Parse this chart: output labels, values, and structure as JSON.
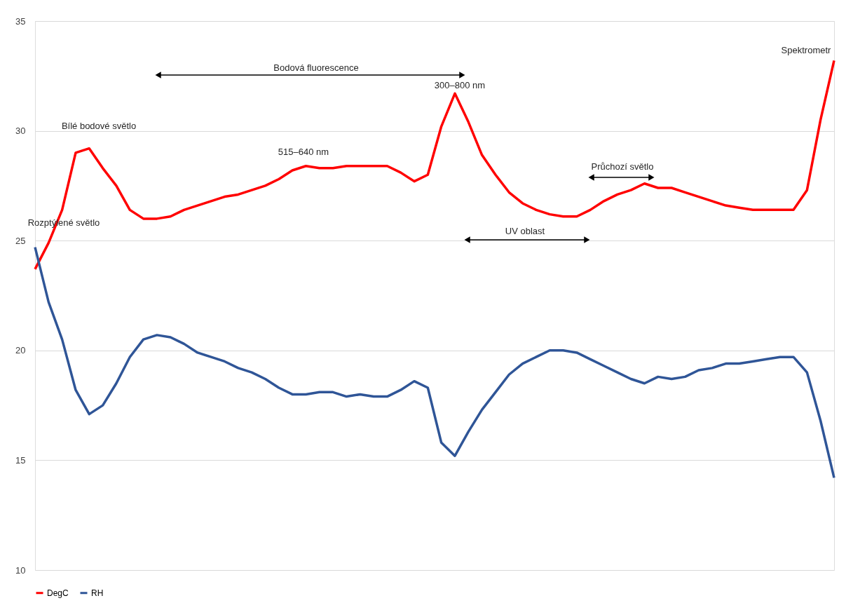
{
  "chart_data": {
    "type": "line",
    "categories": [
      null,
      null,
      null,
      null,
      null,
      null,
      null,
      null,
      null,
      null,
      null,
      null,
      null,
      null,
      null,
      null,
      null,
      null,
      null,
      null,
      null,
      null,
      null,
      null,
      null,
      null,
      null,
      null,
      null,
      null,
      null,
      null,
      null,
      null,
      null,
      null,
      null,
      null,
      null,
      null,
      null,
      null,
      null,
      null,
      null,
      null,
      null,
      null,
      null,
      null,
      null,
      null,
      null,
      null,
      null,
      null,
      null,
      null,
      null,
      null
    ],
    "series": [
      {
        "name": "DegC",
        "color": "#ff0000",
        "values": [
          23.7,
          24.9,
          26.4,
          29.0,
          29.2,
          28.3,
          27.5,
          26.4,
          26.0,
          26.0,
          26.1,
          26.4,
          26.6,
          26.8,
          27.0,
          27.1,
          27.3,
          27.5,
          27.8,
          28.2,
          28.4,
          28.3,
          28.3,
          28.4,
          28.4,
          28.4,
          28.4,
          28.1,
          27.7,
          28.0,
          30.2,
          31.7,
          30.4,
          28.9,
          28.0,
          27.2,
          26.7,
          26.4,
          26.2,
          26.1,
          26.1,
          26.4,
          26.8,
          27.1,
          27.3,
          27.6,
          27.4,
          27.4,
          27.2,
          27.0,
          26.8,
          26.6,
          26.5,
          26.4,
          26.4,
          26.4,
          26.4,
          27.3,
          30.5,
          33.2
        ]
      },
      {
        "name": "RH",
        "color": "#2f5597",
        "values": [
          24.7,
          22.2,
          20.5,
          18.2,
          17.1,
          17.5,
          18.5,
          19.7,
          20.5,
          20.7,
          20.6,
          20.3,
          19.9,
          19.7,
          19.5,
          19.2,
          19.0,
          18.7,
          18.3,
          18.0,
          18.0,
          18.1,
          18.1,
          17.9,
          18.0,
          17.9,
          17.9,
          18.2,
          18.6,
          18.3,
          15.8,
          15.2,
          16.3,
          17.3,
          18.1,
          18.9,
          19.4,
          19.7,
          20.0,
          20.0,
          19.9,
          19.6,
          19.3,
          19.0,
          18.7,
          18.5,
          18.8,
          18.7,
          18.8,
          19.1,
          19.2,
          19.4,
          19.4,
          19.5,
          19.6,
          19.7,
          19.7,
          19.0,
          16.8,
          14.2
        ]
      }
    ],
    "ylim": [
      10,
      35
    ],
    "yticks": [
      10,
      15,
      20,
      25,
      30,
      35
    ],
    "grid": "y",
    "legend": "bottom",
    "tick_labels": "y",
    "annotations": [
      "Bílé bodové světlo",
      "Rozptýlené světlo",
      "Bodová fluorescence",
      "515–640 nm",
      "300–800 nm",
      "UV oblast",
      "Průchozí světlo",
      "Spektrometr"
    ]
  }
}
